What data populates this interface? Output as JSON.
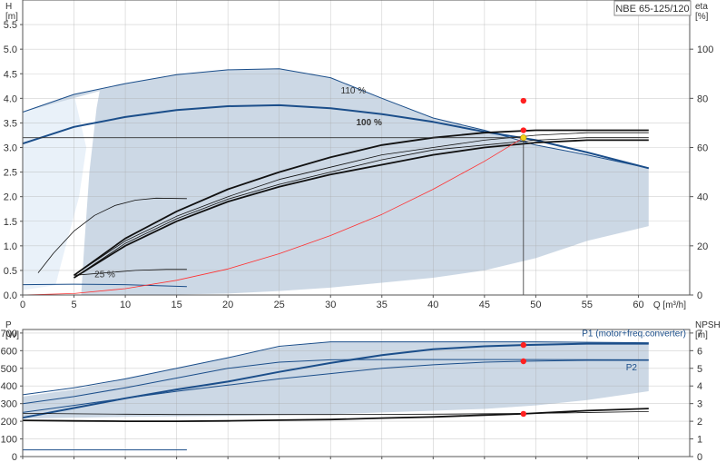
{
  "model_name": "NBE 65-125/120",
  "colors": {
    "region_fill": "#ccd8e5",
    "light_region_fill": "#e9f1f9",
    "curve_blue": "#1b4e8a",
    "curve_black": "#111111",
    "system_curve": "#ff3030",
    "duty_point": "#ff2020",
    "duty_point_yellow": "#f2d21a",
    "grid": "#aaaaaa"
  },
  "chart_data": [
    {
      "type": "line",
      "panel": "head-efficiency",
      "left_axis": {
        "label_lines": [
          "H",
          "[m]"
        ],
        "ylim": [
          0,
          6
        ],
        "ticks": [
          "0.0",
          "0.5",
          "1.0",
          "1.5",
          "2.0",
          "2.5",
          "3.0",
          "3.5",
          "4.0",
          "4.5",
          "5.0",
          "5.5"
        ]
      },
      "right_axis": {
        "label_lines": [
          "eta",
          "[%]"
        ],
        "ylim": [
          0,
          120
        ],
        "ticks": [
          "0",
          "20",
          "40",
          "60",
          "80",
          "100"
        ]
      },
      "x_axis": {
        "label": "Q [m³/h]",
        "xlim": [
          0,
          65
        ],
        "ticks": [
          "0",
          "5",
          "10",
          "15",
          "20",
          "25",
          "30",
          "35",
          "40",
          "45",
          "50",
          "55",
          "60"
        ]
      },
      "grid": true,
      "operating_region": [
        [
          0,
          3.72
        ],
        [
          5,
          4.08
        ],
        [
          10,
          4.3
        ],
        [
          15,
          4.48
        ],
        [
          20,
          4.58
        ],
        [
          25,
          4.6
        ],
        [
          30,
          4.42
        ],
        [
          35,
          4.0
        ],
        [
          40,
          3.6
        ],
        [
          45,
          3.35
        ],
        [
          50,
          3.05
        ],
        [
          55,
          2.85
        ],
        [
          61,
          2.58
        ],
        [
          61,
          1.4
        ],
        [
          55,
          1.1
        ],
        [
          50,
          0.75
        ],
        [
          45,
          0.5
        ],
        [
          40,
          0.35
        ],
        [
          35,
          0.25
        ],
        [
          30,
          0.15
        ],
        [
          25,
          0.08
        ],
        [
          20,
          0.03
        ],
        [
          15,
          0.01
        ],
        [
          10,
          0
        ],
        [
          5.7,
          0
        ],
        [
          6,
          1.0
        ],
        [
          6.5,
          2.5
        ],
        [
          7.2,
          3.8
        ],
        [
          7.5,
          4.15
        ],
        [
          0,
          3.72
        ]
      ],
      "minimum_region": [
        [
          0,
          3.72
        ],
        [
          5,
          4.08
        ],
        [
          6.2,
          3.0
        ],
        [
          5.5,
          2.0
        ],
        [
          4.2,
          1.0
        ],
        [
          3.2,
          0.2
        ],
        [
          0,
          0.1
        ]
      ],
      "series": [
        {
          "name": "110 %",
          "axis": "left",
          "style": "blue-thin",
          "x": [
            0,
            5,
            10,
            15,
            20,
            25,
            30,
            35,
            40,
            45,
            50,
            55,
            61
          ],
          "y": [
            3.72,
            4.08,
            4.3,
            4.48,
            4.58,
            4.6,
            4.42,
            4.0,
            3.6,
            3.35,
            3.05,
            2.85,
            2.58
          ]
        },
        {
          "name": "100 %",
          "axis": "left",
          "style": "blue-thick",
          "x": [
            0,
            5,
            10,
            15,
            20,
            25,
            30,
            35,
            40,
            45,
            50,
            55,
            61
          ],
          "y": [
            3.08,
            3.42,
            3.62,
            3.76,
            3.84,
            3.86,
            3.8,
            3.68,
            3.52,
            3.32,
            3.15,
            2.9,
            2.58
          ]
        },
        {
          "name": "25 %",
          "axis": "left",
          "style": "blue-thin",
          "x": [
            0,
            5,
            10,
            16
          ],
          "y": [
            0.21,
            0.22,
            0.21,
            0.17
          ]
        },
        {
          "name": "",
          "axis": "left",
          "style": "black-thin",
          "x": [
            1.5,
            3,
            5,
            7,
            9,
            11,
            13,
            16
          ],
          "y": [
            0.45,
            0.85,
            1.3,
            1.62,
            1.82,
            1.93,
            1.97,
            1.96
          ]
        },
        {
          "name": "",
          "axis": "left",
          "style": "black-thin",
          "x": [
            5,
            8,
            11,
            14,
            16
          ],
          "y": [
            0.4,
            0.45,
            0.5,
            0.52,
            0.52
          ]
        },
        {
          "name": "",
          "axis": "right",
          "style": "black-thick",
          "x": [
            5,
            10,
            15,
            20,
            25,
            30,
            35,
            40,
            45,
            50,
            55,
            61
          ],
          "y": [
            8,
            23,
            34,
            43,
            50,
            56,
            61,
            64,
            66,
            67,
            67,
            67
          ]
        },
        {
          "name": "",
          "axis": "right",
          "style": "black-thick",
          "x": [
            5,
            10,
            15,
            20,
            25,
            30,
            35,
            40,
            45,
            50,
            55,
            61
          ],
          "y": [
            7,
            20,
            30,
            38,
            44,
            49,
            53,
            57,
            60,
            62,
            63,
            63
          ]
        },
        {
          "name": "",
          "axis": "right",
          "style": "black-thin",
          "x": [
            5,
            10,
            15,
            20,
            25,
            30,
            35,
            40,
            45,
            50,
            55,
            61
          ],
          "y": [
            8,
            22,
            32,
            40,
            47,
            52,
            57,
            60,
            63,
            65,
            66,
            66
          ]
        },
        {
          "name": "",
          "axis": "right",
          "style": "black-thin",
          "x": [
            5,
            10,
            15,
            20,
            25,
            30,
            35,
            40,
            45,
            50,
            55,
            61
          ],
          "y": [
            7,
            21,
            31,
            39,
            45,
            50,
            55,
            59,
            61,
            63,
            64,
            64
          ]
        },
        {
          "name": "",
          "axis": "left",
          "style": "red-system",
          "x": [
            0,
            5,
            10,
            15,
            20,
            25,
            30,
            35,
            40,
            45,
            48.8
          ],
          "y": [
            0,
            0.03,
            0.13,
            0.3,
            0.53,
            0.84,
            1.21,
            1.64,
            2.15,
            2.72,
            3.2
          ]
        }
      ],
      "annotations": [
        {
          "text": "110 %",
          "x": 31,
          "y": 4.1
        },
        {
          "text": "100 %",
          "x": 32.5,
          "y": 3.45
        },
        {
          "text": "25 %",
          "x": 7,
          "y": 0.36
        }
      ],
      "duty_point": {
        "x": 48.8,
        "y": 3.2
      },
      "duty_markers": [
        {
          "x": 48.8,
          "y": 79,
          "axis": "right"
        },
        {
          "x": 48.8,
          "y": 67,
          "axis": "right"
        }
      ]
    },
    {
      "type": "line",
      "panel": "power-npsh",
      "left_axis": {
        "label_lines": [
          "P",
          "[W]"
        ],
        "ylim": [
          0,
          720
        ],
        "ticks": [
          "0",
          "100",
          "200",
          "300",
          "400",
          "500",
          "600",
          "700"
        ]
      },
      "right_axis": {
        "label_lines": [
          "NPSH",
          "[m]"
        ],
        "ylim": [
          0,
          7.2
        ],
        "ticks": [
          "0",
          "1",
          "2",
          "3",
          "4",
          "5",
          "6",
          "7"
        ]
      },
      "xlim": [
        0,
        65
      ],
      "grid": true,
      "operating_region": [
        [
          0,
          340
        ],
        [
          5,
          380
        ],
        [
          10,
          440
        ],
        [
          15,
          500
        ],
        [
          20,
          560
        ],
        [
          25,
          620
        ],
        [
          30,
          650
        ],
        [
          40,
          650
        ],
        [
          50,
          650
        ],
        [
          61,
          645
        ],
        [
          61,
          370
        ],
        [
          55,
          320
        ],
        [
          50,
          290
        ],
        [
          45,
          270
        ],
        [
          40,
          260
        ],
        [
          30,
          240
        ],
        [
          20,
          230
        ],
        [
          10,
          225
        ],
        [
          0,
          215
        ]
      ],
      "series": [
        {
          "name": "P1 (motor+freq.converter)",
          "axis": "left",
          "style": "blue-thick",
          "x": [
            0,
            5,
            10,
            15,
            20,
            25,
            30,
            35,
            40,
            45,
            48.8,
            55,
            61
          ],
          "y": [
            220,
            275,
            330,
            380,
            425,
            480,
            530,
            575,
            608,
            625,
            632,
            640,
            640
          ]
        },
        {
          "name": "P2",
          "axis": "left",
          "style": "blue-thin",
          "x": [
            0,
            5,
            10,
            15,
            20,
            25,
            30,
            35,
            40,
            45,
            48.8,
            55,
            61
          ],
          "y": [
            250,
            290,
            330,
            370,
            405,
            440,
            470,
            500,
            520,
            535,
            540,
            545,
            545
          ]
        },
        {
          "name": "",
          "axis": "left",
          "style": "blue-thin",
          "x": [
            0,
            5,
            10,
            15,
            20,
            25,
            30,
            35,
            40,
            50,
            61
          ],
          "y": [
            300,
            340,
            390,
            445,
            500,
            535,
            548,
            550,
            550,
            550,
            548
          ]
        },
        {
          "name": "",
          "axis": "left",
          "style": "blue-thin",
          "x": [
            0,
            5,
            10,
            15,
            20,
            25,
            30,
            40,
            50,
            61
          ],
          "y": [
            350,
            390,
            440,
            500,
            560,
            625,
            650,
            650,
            650,
            645
          ]
        },
        {
          "name": "",
          "axis": "left",
          "style": "blue-thin",
          "x": [
            0,
            16
          ],
          "y": [
            38,
            38
          ]
        },
        {
          "name": "",
          "axis": "right",
          "style": "black-thick",
          "x": [
            0,
            5,
            10,
            15,
            20,
            25,
            30,
            35,
            40,
            45,
            48.8,
            55,
            61
          ],
          "y": [
            2.05,
            2.02,
            2.0,
            2.0,
            2.02,
            2.06,
            2.1,
            2.18,
            2.25,
            2.35,
            2.42,
            2.6,
            2.72
          ]
        },
        {
          "name": "",
          "axis": "right",
          "style": "black-thin",
          "x": [
            0,
            5,
            10,
            15,
            20,
            30,
            40,
            50,
            61
          ],
          "y": [
            2.45,
            2.42,
            2.4,
            2.38,
            2.38,
            2.38,
            2.4,
            2.45,
            2.55
          ]
        }
      ],
      "duty_markers": [
        {
          "x": 48.8,
          "y": 632,
          "axis": "left"
        },
        {
          "x": 48.8,
          "y": 540,
          "axis": "left"
        },
        {
          "x": 48.8,
          "y": 2.42,
          "axis": "right"
        }
      ]
    }
  ]
}
